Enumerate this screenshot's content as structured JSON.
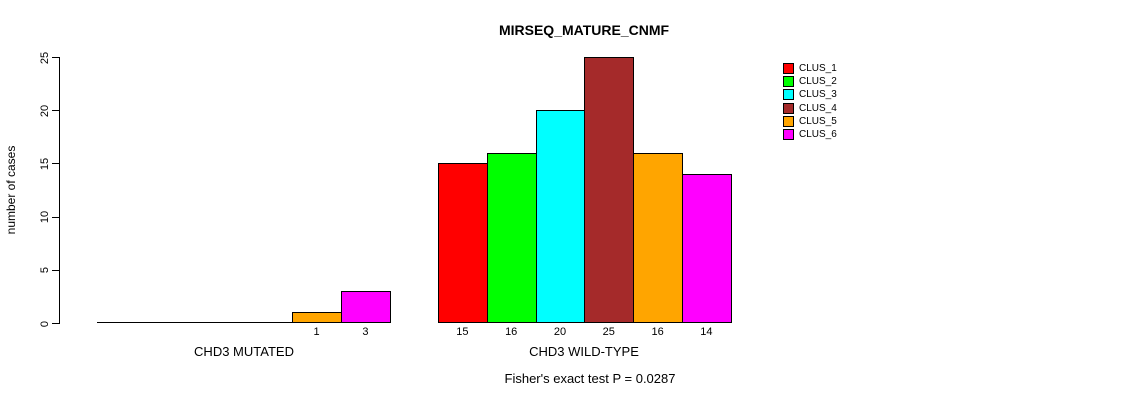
{
  "chart_data": {
    "type": "bar",
    "title": "MIRSEQ_MATURE_CNMF",
    "ylabel": "number of cases",
    "ylim": [
      0,
      25
    ],
    "yticks": [
      0,
      5,
      10,
      15,
      20,
      25
    ],
    "categories": [
      "CLUS_1",
      "CLUS_2",
      "CLUS_3",
      "CLUS_4",
      "CLUS_5",
      "CLUS_6"
    ],
    "groups": [
      {
        "label": "CHD3 MUTATED",
        "values": [
          0,
          0,
          0,
          0,
          1,
          3
        ]
      },
      {
        "label": "CHD3 WILD-TYPE",
        "values": [
          15,
          16,
          20,
          25,
          16,
          14
        ]
      }
    ],
    "legend": [
      {
        "label": "CLUS_1",
        "color": "#FF0000"
      },
      {
        "label": "CLUS_2",
        "color": "#00FF00"
      },
      {
        "label": "CLUS_3",
        "color": "#00FFFF"
      },
      {
        "label": "CLUS_4",
        "color": "#A52A2A"
      },
      {
        "label": "CLUS_5",
        "color": "#FFA500"
      },
      {
        "label": "CLUS_6",
        "color": "#FF00FF"
      }
    ],
    "footnote": "Fisher's exact test P = 0.0287",
    "legend_position": "right",
    "grid": false
  }
}
